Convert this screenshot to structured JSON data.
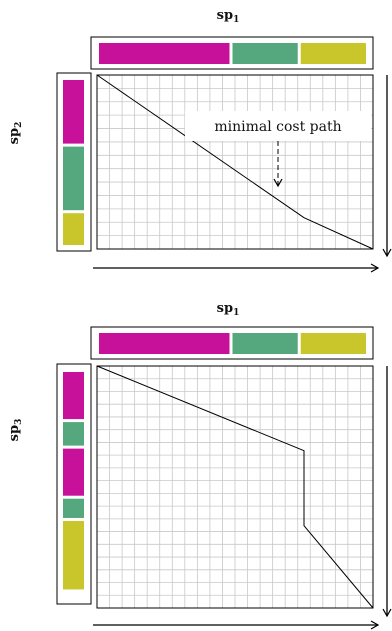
{
  "colors": {
    "magenta": "#c8119b",
    "green": "#55a77e",
    "yellow": "#c8c62a",
    "grid": "#c8c8c8",
    "line": "#000000"
  },
  "panels": [
    {
      "id": "top",
      "x_label": {
        "base": "sp",
        "sub": "1"
      },
      "y_label": {
        "base": "sp",
        "sub": "2"
      },
      "x_segments": [
        {
          "color": "magenta",
          "fraction": 0.5
        },
        {
          "color": "green",
          "fraction": 0.25
        },
        {
          "color": "yellow",
          "fraction": 0.25
        }
      ],
      "y_segments": [
        {
          "color": "magenta",
          "fraction": 0.4
        },
        {
          "color": "green",
          "fraction": 0.4
        },
        {
          "color": "yellow",
          "fraction": 0.2
        }
      ],
      "annotation": "minimal cost path",
      "path": [
        [
          0,
          0
        ],
        [
          0.75,
          0.82
        ],
        [
          1,
          1
        ]
      ]
    },
    {
      "id": "bottom",
      "x_label": {
        "base": "sp",
        "sub": "1"
      },
      "y_label": {
        "base": "sp",
        "sub": "3"
      },
      "x_segments": [
        {
          "color": "magenta",
          "fraction": 0.5
        },
        {
          "color": "green",
          "fraction": 0.25
        },
        {
          "color": "yellow",
          "fraction": 0.25
        }
      ],
      "y_segments": [
        {
          "color": "magenta",
          "fraction": 0.22
        },
        {
          "color": "green",
          "fraction": 0.11
        },
        {
          "color": "magenta",
          "fraction": 0.22
        },
        {
          "color": "green",
          "fraction": 0.09
        },
        {
          "color": "yellow",
          "fraction": 0.32
        }
      ],
      "annotation": "",
      "path": [
        [
          0,
          0
        ],
        [
          0.75,
          0.35
        ],
        [
          0.75,
          0.66
        ],
        [
          1,
          1
        ]
      ]
    }
  ]
}
